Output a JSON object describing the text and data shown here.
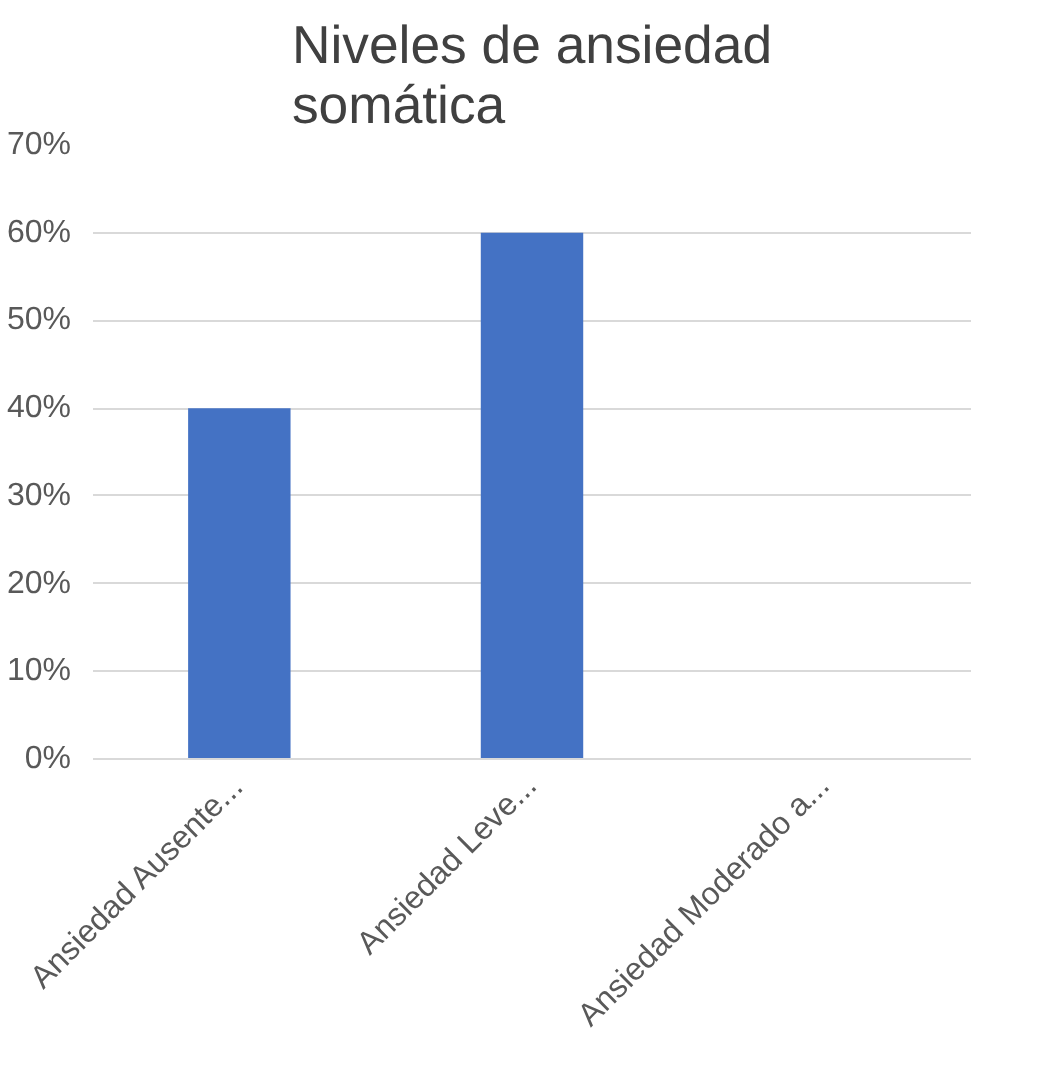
{
  "chart_data": {
    "type": "bar",
    "title": "Niveles de ansiedad\nsomática",
    "categories": [
      "Ansiedad Ausente...",
      "Ansiedad Leve...",
      "Ansiedad Moderado a..."
    ],
    "values": [
      40,
      60,
      0
    ],
    "color": "#4472c4",
    "ylim": [
      0,
      70
    ],
    "yticks": [
      {
        "value": 0,
        "label": "0%"
      },
      {
        "value": 10,
        "label": "10%"
      },
      {
        "value": 20,
        "label": "20%"
      },
      {
        "value": 30,
        "label": "30%"
      },
      {
        "value": 40,
        "label": "40%"
      },
      {
        "value": 50,
        "label": "50%"
      },
      {
        "value": 60,
        "label": "60%"
      },
      {
        "value": 70,
        "label": "70%"
      }
    ],
    "grid": "y"
  }
}
